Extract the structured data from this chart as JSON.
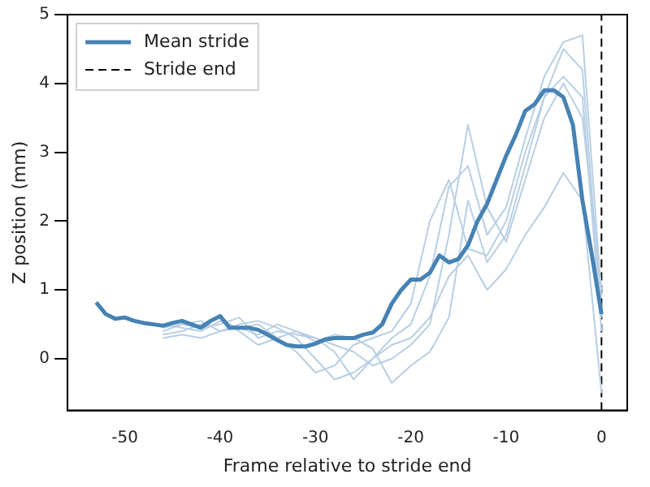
{
  "chart_data": {
    "type": "line",
    "xlabel": "Frame relative to stride end",
    "ylabel": "Z position (mm)",
    "xlim": [
      -56,
      2.7
    ],
    "ylim": [
      -0.75,
      5
    ],
    "xticks": [
      -50,
      -40,
      -30,
      -20,
      -10,
      0
    ],
    "yticks": [
      0,
      1,
      2,
      3,
      4,
      5
    ],
    "grid": false,
    "legend": "top left",
    "marker": "none",
    "line_style": "solid",
    "series": [
      {
        "color": "#b8cfe4",
        "x": [
          -46,
          -44,
          -42,
          -40,
          -38,
          -36,
          -34,
          -32,
          -30,
          -28,
          -26,
          -24,
          -22,
          -20,
          -18,
          -16,
          -14,
          -12,
          -10,
          -8,
          -6,
          -4,
          -2,
          0
        ],
        "values": [
          0.4,
          0.5,
          0.45,
          0.5,
          0.6,
          0.3,
          0.4,
          0.35,
          0.3,
          0.1,
          -0.3,
          0.0,
          0.3,
          0.5,
          1.2,
          2.5,
          2.8,
          1.8,
          2.2,
          3.2,
          4.1,
          4.6,
          4.7,
          0.9
        ]
      },
      {
        "color": "#b8cfe4",
        "x": [
          -46,
          -44,
          -42,
          -40,
          -38,
          -36,
          -34,
          -32,
          -30,
          -28,
          -26,
          -24,
          -22,
          -20,
          -18,
          -16,
          -14,
          -12,
          -10,
          -8,
          -6,
          -4,
          -2,
          0
        ],
        "values": [
          0.5,
          0.45,
          0.4,
          0.55,
          0.45,
          0.5,
          0.3,
          0.1,
          -0.2,
          -0.1,
          0.2,
          0.3,
          0.4,
          0.8,
          2.0,
          2.6,
          1.6,
          1.5,
          2.0,
          3.0,
          3.8,
          4.5,
          4.2,
          0.6
        ]
      },
      {
        "color": "#b8cfe4",
        "x": [
          -46,
          -44,
          -42,
          -40,
          -38,
          -36,
          -34,
          -32,
          -30,
          -28,
          -26,
          -24,
          -22,
          -20,
          -18,
          -16,
          -14,
          -12,
          -10,
          -8,
          -6,
          -4,
          -2,
          0
        ],
        "values": [
          0.35,
          0.4,
          0.5,
          0.6,
          0.4,
          0.2,
          0.3,
          0.4,
          0.3,
          0.2,
          0.1,
          -0.1,
          0.0,
          0.2,
          0.5,
          1.8,
          3.4,
          2.2,
          1.7,
          2.6,
          3.5,
          4.0,
          3.5,
          1.0
        ]
      },
      {
        "color": "#b8cfe4",
        "x": [
          -46,
          -44,
          -42,
          -40,
          -38,
          -36,
          -34,
          -32,
          -30,
          -28,
          -26,
          -24,
          -22,
          -20,
          -18,
          -16,
          -14,
          -12,
          -10,
          -8,
          -6,
          -4,
          -2,
          0
        ],
        "values": [
          0.3,
          0.35,
          0.3,
          0.4,
          0.45,
          0.35,
          0.5,
          0.4,
          0.25,
          0.35,
          0.3,
          0.15,
          -0.35,
          -0.1,
          0.1,
          0.6,
          2.3,
          1.4,
          1.8,
          2.8,
          3.8,
          4.1,
          3.8,
          0.4
        ]
      },
      {
        "color": "#b8cfe4",
        "x": [
          -46,
          -44,
          -42,
          -40,
          -38,
          -36,
          -34,
          -32,
          -30,
          -28,
          -26,
          -24,
          -22,
          -20,
          -18,
          -16,
          -14,
          -12,
          -10,
          -8,
          -6,
          -4,
          -2,
          0
        ],
        "values": [
          0.45,
          0.5,
          0.55,
          0.4,
          0.5,
          0.55,
          0.45,
          0.3,
          0.0,
          -0.3,
          -0.2,
          0.0,
          0.2,
          0.3,
          0.6,
          1.2,
          1.5,
          1.0,
          1.3,
          1.8,
          2.2,
          2.7,
          2.3,
          -0.5
        ]
      },
      {
        "name": "Mean stride",
        "color": "#4682b4",
        "x": [
          -53,
          -52,
          -51,
          -50,
          -49,
          -48,
          -47,
          -46,
          -45,
          -44,
          -43,
          -42,
          -41,
          -40,
          -39,
          -38,
          -37,
          -36,
          -35,
          -34,
          -33,
          -32,
          -31,
          -30,
          -29,
          -28,
          -27,
          -26,
          -25,
          -24,
          -23,
          -22,
          -21,
          -20,
          -19,
          -18,
          -17,
          -16,
          -15,
          -14,
          -13,
          -12,
          -11,
          -10,
          -9,
          -8,
          -7,
          -6,
          -5,
          -4,
          -3,
          -2,
          -1,
          0
        ],
        "values": [
          0.82,
          0.65,
          0.58,
          0.6,
          0.55,
          0.52,
          0.5,
          0.48,
          0.52,
          0.55,
          0.5,
          0.45,
          0.55,
          0.62,
          0.45,
          0.45,
          0.45,
          0.42,
          0.35,
          0.27,
          0.2,
          0.18,
          0.18,
          0.22,
          0.28,
          0.3,
          0.3,
          0.3,
          0.35,
          0.38,
          0.5,
          0.8,
          1.0,
          1.15,
          1.15,
          1.25,
          1.5,
          1.4,
          1.45,
          1.65,
          2.0,
          2.25,
          2.6,
          2.95,
          3.25,
          3.6,
          3.7,
          3.9,
          3.9,
          3.8,
          3.4,
          2.3,
          1.5,
          0.65
        ]
      }
    ],
    "ref_lines": [
      {
        "axis": "x",
        "value": 0,
        "label": "Stride end",
        "color": "#000000",
        "line_style": "dashed"
      }
    ]
  }
}
